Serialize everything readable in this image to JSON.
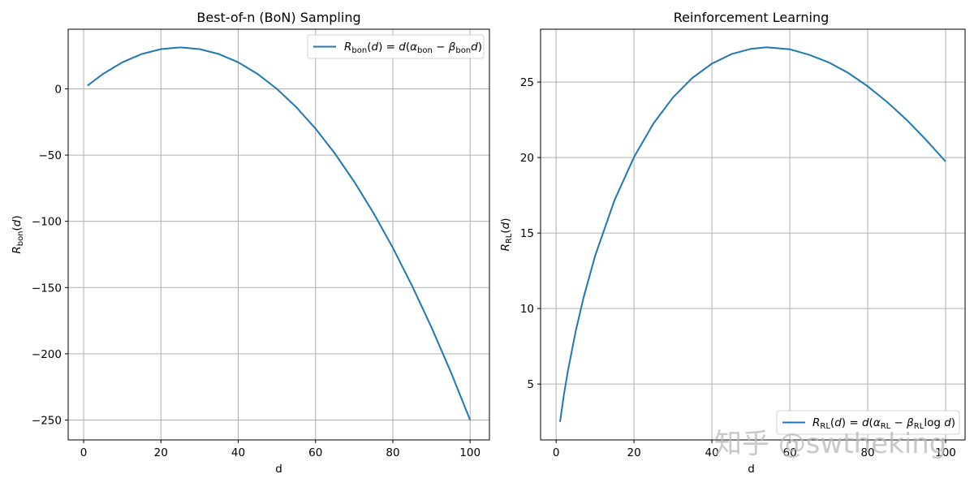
{
  "chart_data": [
    {
      "type": "line",
      "title": "Best-of-n (BoN) Sampling",
      "xlabel": "d",
      "ylabel": "R_bon(d)",
      "xlim": [
        -4,
        105
      ],
      "ylim": [
        -265,
        45
      ],
      "xticks": [
        0,
        20,
        40,
        60,
        80,
        100
      ],
      "yticks": [
        0,
        -50,
        -100,
        -150,
        -200,
        -250
      ],
      "ytick_labels": [
        "0",
        "−50",
        "−100",
        "−150",
        "−200",
        "−250"
      ],
      "grid": true,
      "legend_position": "upper right",
      "series": [
        {
          "name": "R_bon(d) = d(α_bon − β_bon d)",
          "color": "#1f77b4",
          "x": [
            1,
            5,
            10,
            15,
            20,
            25,
            30,
            35,
            40,
            45,
            50,
            55,
            60,
            65,
            70,
            75,
            80,
            85,
            90,
            95,
            100
          ],
          "values": [
            2.45,
            11.25,
            20,
            26.25,
            30,
            31.25,
            30,
            26.25,
            20,
            11.25,
            0,
            -13.75,
            -30,
            -48.75,
            -70,
            -93.75,
            -120,
            -148.75,
            -180,
            -213.75,
            -250
          ]
        }
      ]
    },
    {
      "type": "line",
      "title": "Reinforcement Learning",
      "xlabel": "d",
      "ylabel": "R_RL(d)",
      "xlim": [
        -4,
        105
      ],
      "ylim": [
        1.3,
        28.5
      ],
      "xticks": [
        0,
        20,
        40,
        60,
        80,
        100
      ],
      "yticks": [
        5,
        10,
        15,
        20,
        25
      ],
      "grid": true,
      "legend_position": "lower right",
      "series": [
        {
          "name": "R_RL(d) = d(α_RL − β_RL log d)",
          "color": "#1f77b4",
          "x": [
            1,
            2,
            3,
            5,
            7,
            10,
            15,
            20,
            25,
            30,
            35,
            40,
            45,
            50,
            54,
            60,
            65,
            70,
            75,
            80,
            85,
            90,
            95,
            100
          ],
          "values": [
            2.5,
            4.31,
            5.85,
            8.48,
            10.69,
            13.49,
            17.19,
            20.04,
            22.26,
            23.98,
            25.28,
            26.22,
            26.85,
            27.2,
            27.3,
            27.17,
            26.8,
            26.3,
            25.6,
            24.72,
            23.68,
            22.5,
            21.17,
            19.74
          ]
        }
      ]
    }
  ],
  "figure": {
    "left_title": "Best-of-n (BoN) Sampling",
    "right_title": "Reinforcement Learning",
    "left_xlabel": "d",
    "right_xlabel": "d",
    "left_legend": "R_bon(d) = d(α_bon − β_bon d)",
    "right_legend": "R_RL(d) = d(α_RL − β_RL log d)",
    "watermark": "知乎 @swtheking",
    "line_color": "#1f77b4",
    "grid_color": "#b0b0b0"
  }
}
